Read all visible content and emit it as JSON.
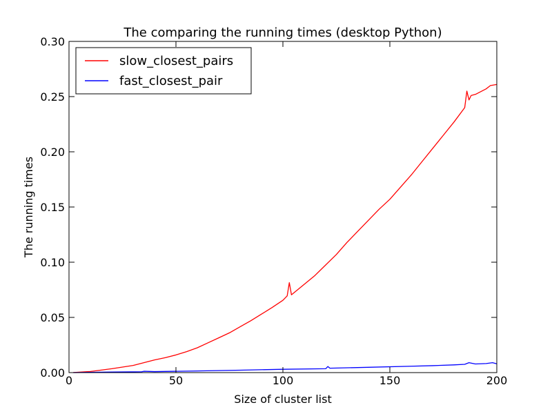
{
  "chart_data": {
    "type": "line",
    "title": "The comparing the running times (desktop Python)",
    "xlabel": "Size of cluster list",
    "ylabel": "The running times",
    "xlim": [
      0,
      200
    ],
    "ylim": [
      0.0,
      0.3
    ],
    "xticks": [
      "0",
      "50",
      "100",
      "150",
      "200"
    ],
    "yticks": [
      "0.00",
      "0.05",
      "0.10",
      "0.15",
      "0.20",
      "0.25",
      "0.30"
    ],
    "grid": false,
    "legend_position": "top-left",
    "series": [
      {
        "name": "slow_closest_pairs",
        "color": "#ff0000",
        "x": [
          2,
          10,
          20,
          30,
          35,
          40,
          45,
          50,
          55,
          60,
          65,
          70,
          75,
          80,
          85,
          90,
          95,
          100,
          102,
          103,
          104,
          110,
          115,
          120,
          125,
          130,
          135,
          140,
          145,
          150,
          155,
          160,
          165,
          170,
          175,
          180,
          185,
          186,
          187,
          188,
          190,
          195,
          197,
          200
        ],
        "y": [
          0.0001,
          0.001,
          0.0035,
          0.0065,
          0.009,
          0.0115,
          0.0135,
          0.016,
          0.019,
          0.0225,
          0.027,
          0.0315,
          0.036,
          0.0415,
          0.047,
          0.053,
          0.059,
          0.0655,
          0.0695,
          0.0815,
          0.0705,
          0.08,
          0.088,
          0.0975,
          0.107,
          0.118,
          0.128,
          0.138,
          0.148,
          0.157,
          0.168,
          0.179,
          0.191,
          0.203,
          0.215,
          0.227,
          0.24,
          0.255,
          0.247,
          0.251,
          0.252,
          0.257,
          0.26,
          0.261
        ]
      },
      {
        "name": "fast_closest_pair",
        "color": "#0000ff",
        "x": [
          2,
          20,
          34,
          35,
          40,
          60,
          80,
          100,
          120,
          121,
          122,
          140,
          160,
          170,
          180,
          185,
          187,
          190,
          195,
          198,
          200
        ],
        "y": [
          0.0,
          0.0005,
          0.0008,
          0.0012,
          0.0009,
          0.0015,
          0.0022,
          0.003,
          0.0035,
          0.0055,
          0.004,
          0.0048,
          0.0058,
          0.0063,
          0.007,
          0.0075,
          0.009,
          0.0078,
          0.0082,
          0.009,
          0.008
        ]
      }
    ]
  }
}
